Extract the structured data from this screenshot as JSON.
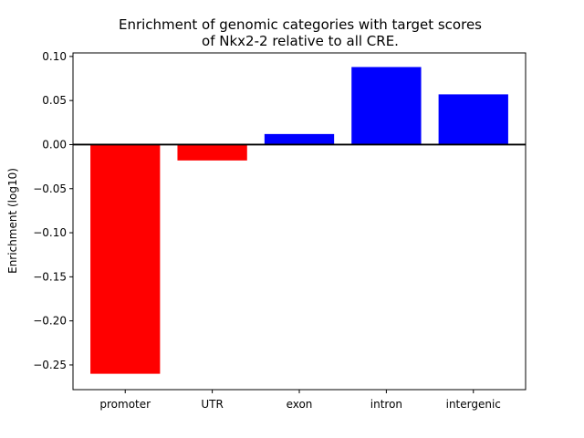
{
  "chart_data": {
    "type": "bar",
    "title_lines": [
      "Enrichment of genomic categories with target scores",
      "of Nkx2-2 relative to all CRE."
    ],
    "xlabel": "",
    "ylabel": "Enrichment (log10)",
    "categories": [
      "promoter",
      "UTR",
      "exon",
      "intron",
      "intergenic"
    ],
    "values": [
      -0.26,
      -0.018,
      0.012,
      0.088,
      0.057
    ],
    "bar_colors": [
      "#ff0000",
      "#ff0000",
      "#0000ff",
      "#0000ff",
      "#0000ff"
    ],
    "ylim": [
      -0.278,
      0.104
    ],
    "yticks": [
      0.1,
      0.05,
      0.0,
      -0.05,
      -0.1,
      -0.15,
      -0.2,
      -0.25
    ],
    "ytick_labels": [
      "0.10",
      "0.05",
      "0.00",
      "−0.05",
      "−0.10",
      "−0.15",
      "−0.20",
      "−0.25"
    ],
    "zero_line": true,
    "grid": false,
    "legend": "none"
  }
}
